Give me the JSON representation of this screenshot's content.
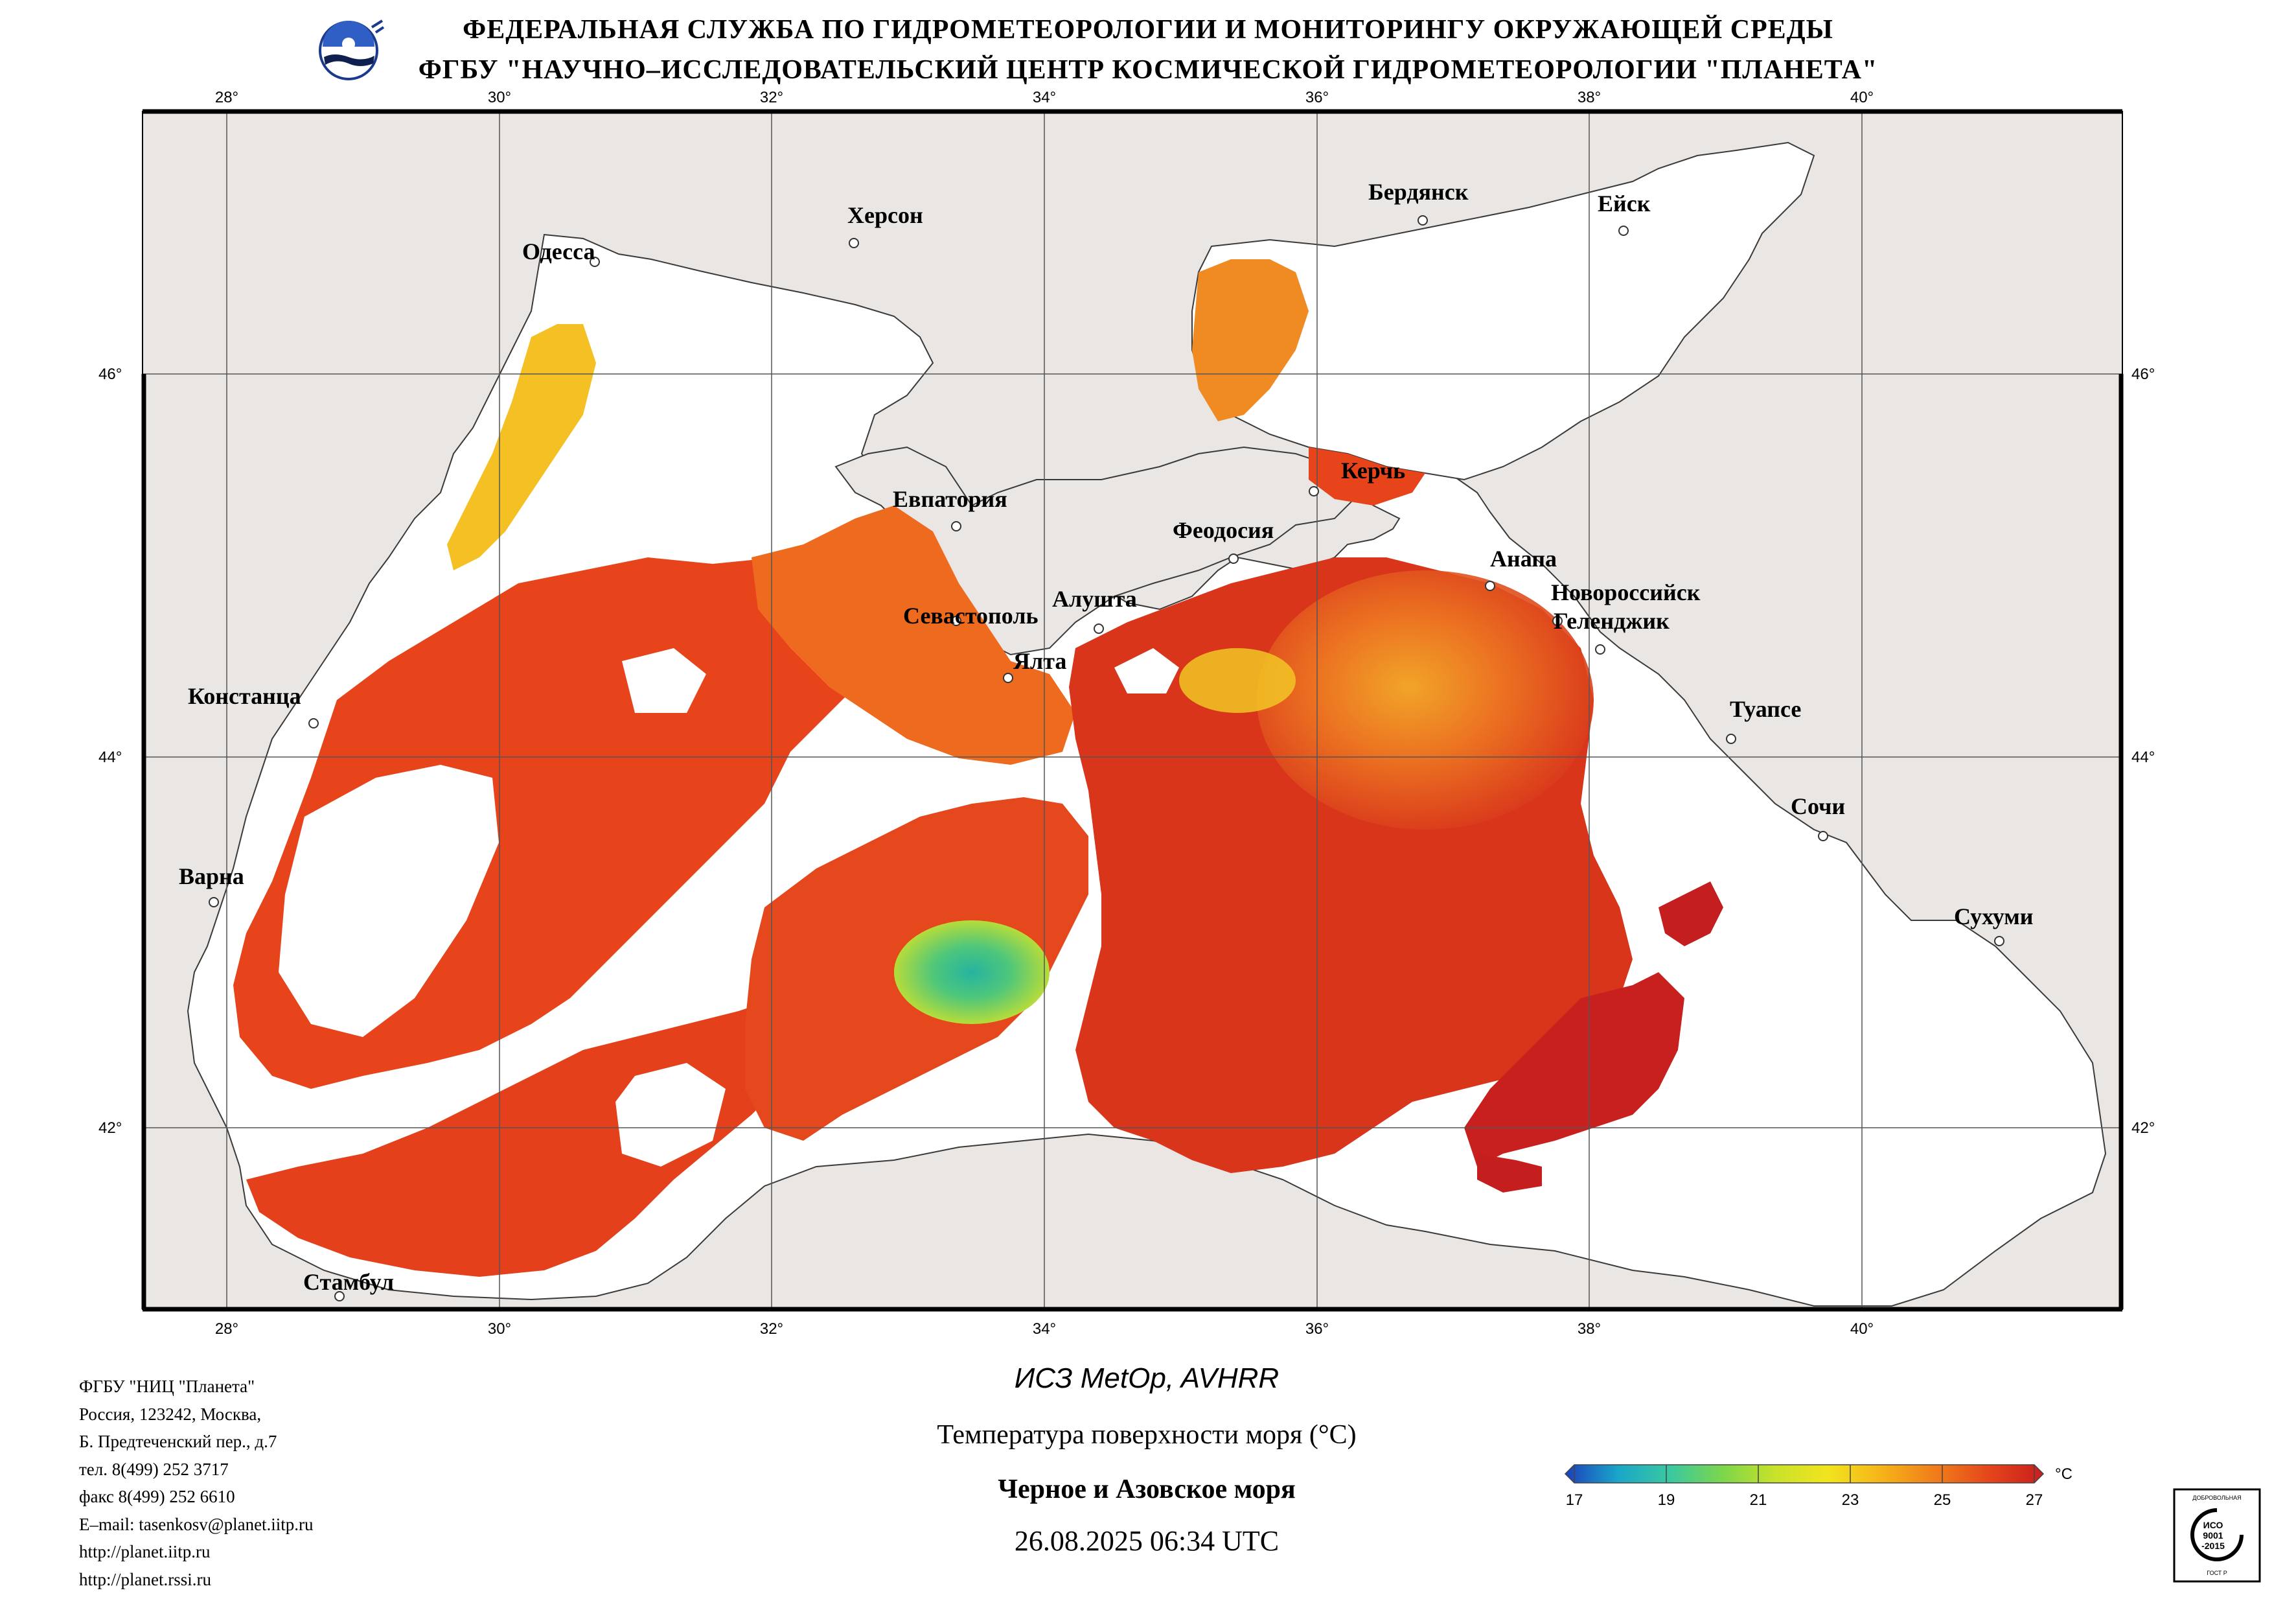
{
  "header": {
    "line1": "ФЕДЕРАЛЬНАЯ СЛУЖБА ПО ГИДРОМЕТЕОРОЛОГИИ И МОНИТОРИНГУ ОКРУЖАЮЩЕЙ СРЕДЫ",
    "line2": "ФГБУ \"НАУЧНО–ИССЛЕДОВАТЕЛЬСКИЙ ЦЕНТР КОСМИЧЕСКОЙ ГИДРОМЕТЕОРОЛОГИИ \"ПЛАНЕТА\""
  },
  "map": {
    "lon_ticks": [
      "28°",
      "30°",
      "32°",
      "34°",
      "36°",
      "38°",
      "40°"
    ],
    "lat_ticks": [
      "46°",
      "44°",
      "42°"
    ],
    "cities": {
      "odessa": "Одесса",
      "kherson": "Херсон",
      "berdyansk": "Бердянск",
      "yeysk": "Ейск",
      "yevpatoria": "Евпатория",
      "kerch": "Керчь",
      "feodosia": "Феодосия",
      "anapa": "Анапа",
      "novorossiysk": "Новороссийск",
      "gelendzhik": "Геленджик",
      "sevastopol": "Севастополь",
      "alushta": "Алушта",
      "yalta": "Ялта",
      "constanta": "Констанца",
      "tuapse": "Туапсе",
      "sochi": "Сочи",
      "varna": "Варна",
      "sukhumi": "Сухуми",
      "istanbul": "Стамбул"
    },
    "colors": {
      "land": "#e9e6e3",
      "no_data": "#ffffff",
      "sst_main": "#e8441c",
      "sst_warm": "#c8201a",
      "sst_cool": "#f5a21f"
    }
  },
  "info": [
    "ФГБУ \"НИЦ \"Планета\"",
    "Россия, 123242, Москва,",
    "Б. Предтеченский пер., д.7",
    "тел. 8(499) 252 3717",
    "факс 8(499) 252 6610",
    "E–mail: tasenkosv@planet.iitp.ru",
    "http://planet.iitp.ru",
    "http://planet.rssi.ru"
  ],
  "product": {
    "satellite": "ИСЗ MetOp, AVHRR",
    "parameter": "Температура поверхности моря (°C)",
    "region": "Черное и Азовское моря",
    "datetime": "26.08.2025 06:34 UTC"
  },
  "colorbar": {
    "unit": "°C",
    "ticks": [
      "17",
      "19",
      "21",
      "23",
      "25",
      "27"
    ],
    "colors": [
      "#1c3fbd",
      "#1aa6c8",
      "#39c9a0",
      "#7dd64a",
      "#c9e22a",
      "#f2e41e",
      "#f6b419",
      "#f07a1a",
      "#e5441b",
      "#c81e1e"
    ]
  },
  "iso": {
    "top": "ДОБРОВОЛЬНАЯ",
    "mid1": "ИСО",
    "mid2": "9001",
    "mid3": "-2015",
    "bottom": "ГОСТ Р"
  }
}
